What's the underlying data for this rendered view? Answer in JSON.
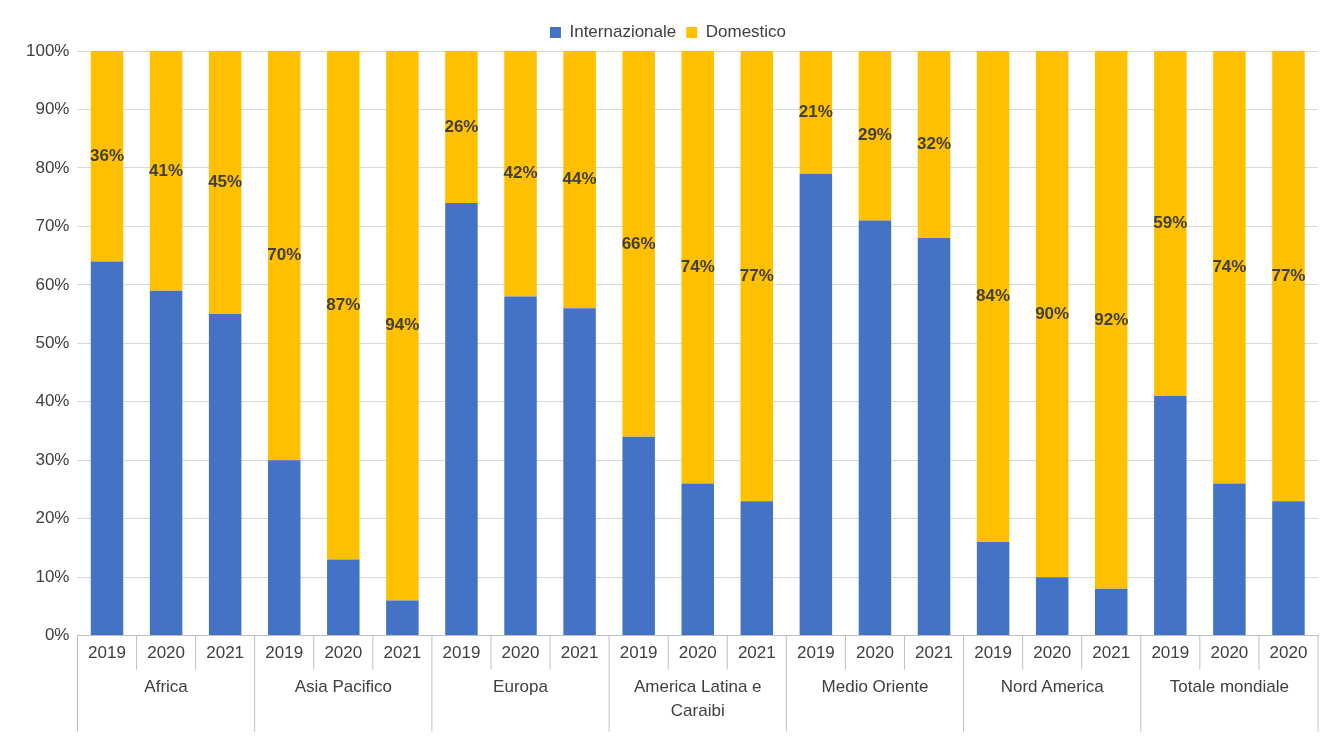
{
  "chart_data": {
    "type": "bar",
    "stacked": true,
    "categories": [
      "2019",
      "2020",
      "2021",
      "2019",
      "2020",
      "2021",
      "2019",
      "2020",
      "2021",
      "2019",
      "2020",
      "2021",
      "2019",
      "2020",
      "2021",
      "2019",
      "2020",
      "2021",
      "2019",
      "2020",
      "2020"
    ],
    "annotations": [
      "Africa",
      "Asia Pacifico",
      "Europa",
      "America Latina e Caraibi",
      "Medio Oriente",
      "Nord America",
      "Totale mondiale"
    ],
    "series": [
      {
        "name": "Internazionale",
        "color": "#4472c4",
        "values": [
          64,
          59,
          55,
          30,
          13,
          6,
          74,
          58,
          56,
          34,
          26,
          23,
          79,
          71,
          68,
          16,
          10,
          8,
          41,
          26,
          23
        ]
      },
      {
        "name": "Domestico",
        "color": "#ffc000",
        "values": [
          36,
          41,
          45,
          70,
          87,
          94,
          26,
          42,
          44,
          66,
          74,
          77,
          21,
          29,
          32,
          84,
          90,
          92,
          59,
          74,
          77
        ],
        "value_labels": [
          "36%",
          "41%",
          "45%",
          "70%",
          "87%",
          "94%",
          "26%",
          "42%",
          "44%",
          "66%",
          "74%",
          "77%",
          "21%",
          "29%",
          "32%",
          "84%",
          "90%",
          "92%",
          "59%",
          "74%",
          "77%"
        ]
      }
    ],
    "ylim": [
      0,
      100
    ],
    "yticks": [
      {
        "value": 0,
        "label": "0%"
      },
      {
        "value": 10,
        "label": "10%"
      },
      {
        "value": 20,
        "label": "20%"
      },
      {
        "value": 30,
        "label": "30%"
      },
      {
        "value": 40,
        "label": "40%"
      },
      {
        "value": 50,
        "label": "50%"
      },
      {
        "value": 60,
        "label": "60%"
      },
      {
        "value": 70,
        "label": "70%"
      },
      {
        "value": 80,
        "label": "80%"
      },
      {
        "value": 90,
        "label": "90%"
      },
      {
        "value": 100,
        "label": "100%"
      }
    ],
    "grid": "y",
    "legend": "top"
  }
}
